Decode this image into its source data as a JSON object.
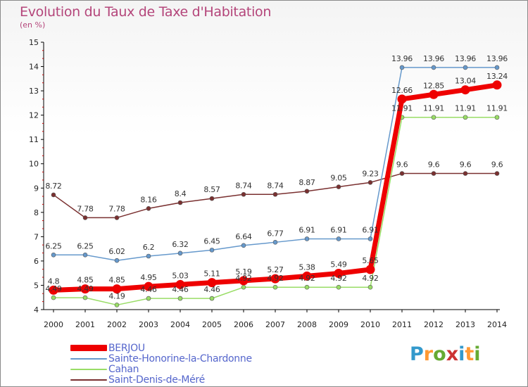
{
  "title": "Evolution du Taux de Taxe d'Habitation",
  "unit_label": "(en %)",
  "logo_text": "Proxiti",
  "chart_data": {
    "type": "line",
    "title": "Evolution du Taux de Taxe d'Habitation",
    "ylabel": "(en %)",
    "ylim": [
      4,
      15
    ],
    "yticks": [
      4,
      5,
      6,
      7,
      8,
      9,
      10,
      11,
      12,
      13,
      14,
      15
    ],
    "x": [
      "2000",
      "2001",
      "2002",
      "2003",
      "2004",
      "2005",
      "2006",
      "2007",
      "2008",
      "2009",
      "2010",
      "2011",
      "2012",
      "2013",
      "2014"
    ],
    "grid": false,
    "legend_position": "bottom-left",
    "series": [
      {
        "name": "BERJOU",
        "color": "#ee0000",
        "values": [
          4.8,
          4.85,
          4.85,
          4.95,
          5.03,
          5.11,
          5.19,
          5.27,
          5.38,
          5.49,
          5.65,
          12.66,
          12.85,
          13.04,
          13.24
        ],
        "labels": [
          "4.8",
          "4.85",
          "4.85",
          "4.95",
          "5.03",
          "5.11",
          "5.19",
          "5.27",
          "5.38",
          "5.49",
          "5.65",
          "12.66",
          "12.85",
          "13.04",
          "13.24"
        ]
      },
      {
        "name": "Sainte-Honorine-la-Chardonne",
        "color": "#6699cc",
        "values": [
          6.25,
          6.25,
          6.02,
          6.2,
          6.32,
          6.45,
          6.64,
          6.77,
          6.91,
          6.91,
          6.91,
          13.96,
          13.96,
          13.96,
          13.96
        ],
        "labels": [
          "6.25",
          "6.25",
          "6.02",
          "6.2",
          "6.32",
          "6.45",
          "6.64",
          "6.77",
          "6.91",
          "6.91",
          "6.91",
          "13.96",
          "13.96",
          "13.96",
          "13.96"
        ]
      },
      {
        "name": "Cahan",
        "color": "#99dd66",
        "values": [
          4.49,
          4.49,
          4.19,
          4.46,
          4.46,
          4.46,
          4.92,
          4.92,
          4.92,
          4.92,
          4.92,
          11.91,
          11.91,
          11.91,
          11.91
        ],
        "labels": [
          "4.49",
          "4.49",
          "4.19",
          "4.46",
          "4.46",
          "4.46",
          "4.92",
          "4.92",
          "4.92",
          "4.92",
          "4.92",
          "11.91",
          "11.91",
          "11.91",
          "11.91"
        ]
      },
      {
        "name": "Saint-Denis-de-Méré",
        "color": "#7a3030",
        "values": [
          8.72,
          7.78,
          7.78,
          8.16,
          8.4,
          8.57,
          8.74,
          8.74,
          8.87,
          9.05,
          9.23,
          9.6,
          9.6,
          9.6,
          9.6
        ],
        "labels": [
          "8.72",
          "7.78",
          "7.78",
          "8.16",
          "8.4",
          "8.57",
          "8.74",
          "8.74",
          "8.87",
          "9.05",
          "9.23",
          "9.6",
          "9.6",
          "9.6",
          "9.6"
        ]
      }
    ]
  }
}
